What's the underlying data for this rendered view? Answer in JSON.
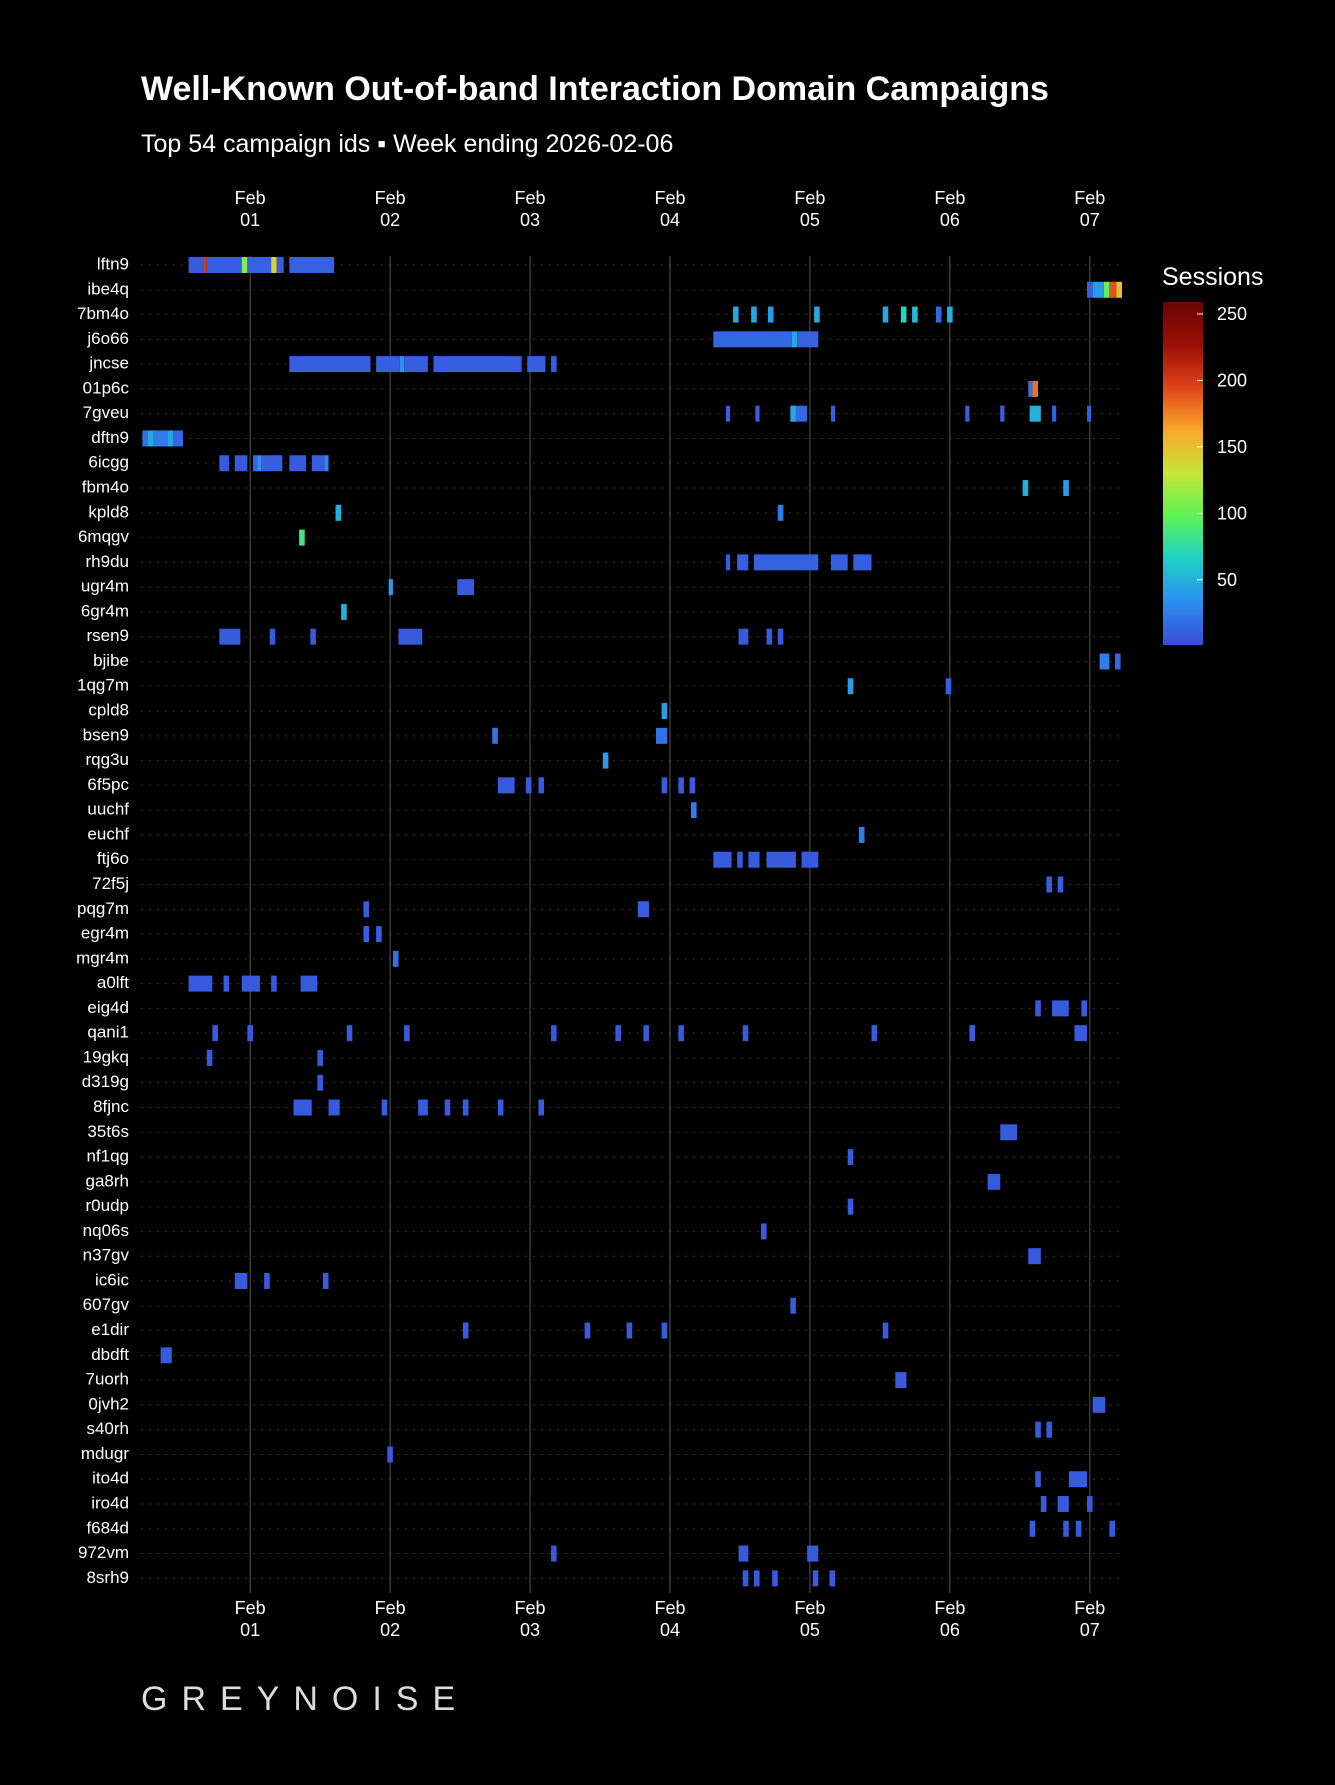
{
  "chart_data": {
    "type": "heatmap",
    "title": "Well-Known Out-of-band Interaction Domain Campaigns",
    "subtitle": "Top 54 campaign ids ▪ Week ending 2026-02-06",
    "logo": "GREYNOISE",
    "xlim": [
      0.22,
      7.23
    ],
    "xticks": [
      {
        "value": 1,
        "label": "Feb\n01"
      },
      {
        "value": 2,
        "label": "Feb\n02"
      },
      {
        "value": 3,
        "label": "Feb\n03"
      },
      {
        "value": 4,
        "label": "Feb\n04"
      },
      {
        "value": 5,
        "label": "Feb\n05"
      },
      {
        "value": 6,
        "label": "Feb\n06"
      },
      {
        "value": 7,
        "label": "Feb\n07"
      }
    ],
    "grid": true,
    "colorbar_title": "Sessions",
    "clim": [
      1,
      259
    ],
    "cticks": [
      50,
      100,
      150,
      200,
      250
    ],
    "colorscale": [
      "#3b4bd8",
      "#2b8ef0",
      "#1fd0c8",
      "#5cf356",
      "#c4e63a",
      "#f9a92a",
      "#e0441a",
      "#9a0f05",
      "#6a0303"
    ],
    "series": [
      {
        "name": "lftn9",
        "cells": [
          [
            0.56,
            0.67,
            8
          ],
          [
            0.67,
            0.69,
            200
          ],
          [
            0.69,
            0.94,
            10
          ],
          [
            0.94,
            0.98,
            110
          ],
          [
            0.98,
            1.15,
            12
          ],
          [
            1.15,
            1.19,
            140
          ],
          [
            1.19,
            1.24,
            10
          ],
          [
            1.28,
            1.6,
            12
          ]
        ]
      },
      {
        "name": "ibe4q",
        "cells": [
          [
            6.98,
            7.02,
            10
          ],
          [
            7.02,
            7.1,
            40
          ],
          [
            7.1,
            7.14,
            100
          ],
          [
            7.14,
            7.19,
            190
          ],
          [
            7.19,
            7.23,
            150
          ]
        ]
      },
      {
        "name": "7bm4o",
        "cells": [
          [
            4.45,
            4.49,
            45
          ],
          [
            4.58,
            4.62,
            45
          ],
          [
            4.7,
            4.74,
            40
          ],
          [
            5.03,
            5.07,
            45
          ],
          [
            5.52,
            5.56,
            45
          ],
          [
            5.65,
            5.69,
            70
          ],
          [
            5.73,
            5.77,
            55
          ],
          [
            5.9,
            5.94,
            15
          ],
          [
            5.98,
            6.02,
            50
          ]
        ]
      },
      {
        "name": "j6o66",
        "cells": [
          [
            4.31,
            4.87,
            15
          ],
          [
            4.87,
            4.91,
            45
          ],
          [
            4.91,
            5.06,
            12
          ]
        ]
      },
      {
        "name": "jncse",
        "cells": [
          [
            1.28,
            1.86,
            10
          ],
          [
            1.9,
            2.07,
            10
          ],
          [
            2.07,
            2.1,
            35
          ],
          [
            2.1,
            2.27,
            10
          ],
          [
            2.31,
            2.94,
            10
          ],
          [
            2.98,
            3.11,
            10
          ],
          [
            3.15,
            3.19,
            10
          ]
        ]
      },
      {
        "name": "01p6c",
        "cells": [
          [
            6.56,
            6.59,
            20
          ],
          [
            6.59,
            6.63,
            180
          ]
        ]
      },
      {
        "name": "7gveu",
        "cells": [
          [
            4.4,
            4.43,
            10
          ],
          [
            4.61,
            4.64,
            10
          ],
          [
            4.86,
            4.9,
            45
          ],
          [
            4.9,
            4.98,
            15
          ],
          [
            5.15,
            5.18,
            10
          ],
          [
            6.11,
            6.14,
            10
          ],
          [
            6.36,
            6.39,
            10
          ],
          [
            6.57,
            6.65,
            50
          ],
          [
            6.73,
            6.76,
            10
          ],
          [
            6.98,
            7.01,
            10
          ]
        ]
      },
      {
        "name": "dftn9",
        "cells": [
          [
            0.23,
            0.27,
            20
          ],
          [
            0.27,
            0.31,
            45
          ],
          [
            0.31,
            0.41,
            25
          ],
          [
            0.41,
            0.45,
            45
          ],
          [
            0.45,
            0.52,
            15
          ]
        ]
      },
      {
        "name": "6icgg",
        "cells": [
          [
            0.78,
            0.85,
            8
          ],
          [
            0.89,
            0.98,
            8
          ],
          [
            1.02,
            1.05,
            15
          ],
          [
            1.05,
            1.08,
            35
          ],
          [
            1.08,
            1.23,
            10
          ],
          [
            1.28,
            1.4,
            8
          ],
          [
            1.44,
            1.53,
            10
          ],
          [
            1.53,
            1.56,
            30
          ]
        ]
      },
      {
        "name": "fbm4o",
        "cells": [
          [
            6.52,
            6.56,
            50
          ],
          [
            6.81,
            6.85,
            40
          ]
        ]
      },
      {
        "name": "kpld8",
        "cells": [
          [
            1.61,
            1.65,
            50
          ],
          [
            4.77,
            4.81,
            25
          ]
        ]
      },
      {
        "name": "6mqgv",
        "cells": [
          [
            1.35,
            1.39,
            85
          ]
        ]
      },
      {
        "name": "rh9du",
        "cells": [
          [
            4.4,
            4.43,
            8
          ],
          [
            4.48,
            4.56,
            10
          ],
          [
            4.6,
            5.06,
            12
          ],
          [
            5.15,
            5.27,
            10
          ],
          [
            5.31,
            5.44,
            10
          ]
        ]
      },
      {
        "name": "ugr4m",
        "cells": [
          [
            1.99,
            2.02,
            40
          ],
          [
            2.48,
            2.6,
            8
          ]
        ]
      },
      {
        "name": "6gr4m",
        "cells": [
          [
            1.65,
            1.69,
            50
          ]
        ]
      },
      {
        "name": "rsen9",
        "cells": [
          [
            0.78,
            0.93,
            8
          ],
          [
            1.14,
            1.18,
            8
          ],
          [
            1.43,
            1.47,
            8
          ],
          [
            2.06,
            2.23,
            8
          ],
          [
            4.49,
            4.56,
            8
          ],
          [
            4.69,
            4.73,
            8
          ],
          [
            4.77,
            4.81,
            8
          ]
        ]
      },
      {
        "name": "bjibe",
        "cells": [
          [
            7.07,
            7.14,
            25
          ],
          [
            7.18,
            7.22,
            15
          ]
        ]
      },
      {
        "name": "1qg7m",
        "cells": [
          [
            5.27,
            5.31,
            40
          ],
          [
            5.97,
            6.01,
            10
          ]
        ]
      },
      {
        "name": "cpld8",
        "cells": [
          [
            3.94,
            3.98,
            40
          ]
        ]
      },
      {
        "name": "bsen9",
        "cells": [
          [
            2.73,
            2.77,
            20
          ],
          [
            3.9,
            3.98,
            20
          ]
        ]
      },
      {
        "name": "rqg3u",
        "cells": [
          [
            3.52,
            3.56,
            40
          ]
        ]
      },
      {
        "name": "6f5pc",
        "cells": [
          [
            2.77,
            2.89,
            8
          ],
          [
            2.97,
            3.01,
            8
          ],
          [
            3.06,
            3.1,
            8
          ],
          [
            3.94,
            3.98,
            8
          ],
          [
            4.06,
            4.1,
            8
          ],
          [
            4.14,
            4.18,
            8
          ]
        ]
      },
      {
        "name": "uuchf",
        "cells": [
          [
            4.15,
            4.19,
            25
          ]
        ]
      },
      {
        "name": "euchf",
        "cells": [
          [
            5.35,
            5.39,
            25
          ]
        ]
      },
      {
        "name": "ftj6o",
        "cells": [
          [
            4.31,
            4.44,
            8
          ],
          [
            4.48,
            4.52,
            8
          ],
          [
            4.56,
            4.64,
            8
          ],
          [
            4.69,
            4.9,
            8
          ],
          [
            4.94,
            5.06,
            8
          ]
        ]
      },
      {
        "name": "72f5j",
        "cells": [
          [
            6.69,
            6.73,
            10
          ],
          [
            6.77,
            6.81,
            10
          ]
        ]
      },
      {
        "name": "pqg7m",
        "cells": [
          [
            1.81,
            1.85,
            10
          ],
          [
            3.77,
            3.85,
            10
          ]
        ]
      },
      {
        "name": "egr4m",
        "cells": [
          [
            1.81,
            1.85,
            10
          ],
          [
            1.9,
            1.94,
            10
          ]
        ]
      },
      {
        "name": "mgr4m",
        "cells": [
          [
            2.02,
            2.06,
            20
          ]
        ]
      },
      {
        "name": "a0lft",
        "cells": [
          [
            0.56,
            0.73,
            8
          ],
          [
            0.81,
            0.85,
            8
          ],
          [
            0.94,
            1.07,
            8
          ],
          [
            1.15,
            1.19,
            8
          ],
          [
            1.36,
            1.48,
            8
          ]
        ]
      },
      {
        "name": "eig4d",
        "cells": [
          [
            6.61,
            6.65,
            8
          ],
          [
            6.73,
            6.85,
            8
          ],
          [
            6.94,
            6.98,
            8
          ]
        ]
      },
      {
        "name": "qani1",
        "cells": [
          [
            0.73,
            0.77,
            8
          ],
          [
            0.98,
            1.02,
            8
          ],
          [
            1.69,
            1.73,
            8
          ],
          [
            2.1,
            2.14,
            8
          ],
          [
            3.15,
            3.19,
            8
          ],
          [
            3.61,
            3.65,
            8
          ],
          [
            3.81,
            3.85,
            8
          ],
          [
            4.06,
            4.1,
            8
          ],
          [
            4.52,
            4.56,
            8
          ],
          [
            5.44,
            5.48,
            8
          ],
          [
            6.14,
            6.18,
            8
          ],
          [
            6.89,
            6.98,
            8
          ]
        ]
      },
      {
        "name": "19gkq",
        "cells": [
          [
            0.69,
            0.73,
            8
          ],
          [
            1.48,
            1.52,
            8
          ]
        ]
      },
      {
        "name": "d319g",
        "cells": [
          [
            1.48,
            1.52,
            8
          ]
        ]
      },
      {
        "name": "8fjnc",
        "cells": [
          [
            1.31,
            1.44,
            8
          ],
          [
            1.56,
            1.64,
            8
          ],
          [
            1.94,
            1.98,
            8
          ],
          [
            2.2,
            2.27,
            8
          ],
          [
            2.39,
            2.43,
            8
          ],
          [
            2.52,
            2.56,
            8
          ],
          [
            2.77,
            2.81,
            8
          ],
          [
            3.06,
            3.1,
            8
          ]
        ]
      },
      {
        "name": "35t6s",
        "cells": [
          [
            6.36,
            6.48,
            8
          ]
        ]
      },
      {
        "name": "nf1qg",
        "cells": [
          [
            5.27,
            5.31,
            8
          ]
        ]
      },
      {
        "name": "ga8rh",
        "cells": [
          [
            6.27,
            6.36,
            8
          ]
        ]
      },
      {
        "name": "r0udp",
        "cells": [
          [
            5.27,
            5.31,
            8
          ]
        ]
      },
      {
        "name": "nq06s",
        "cells": [
          [
            4.65,
            4.69,
            8
          ]
        ]
      },
      {
        "name": "n37gv",
        "cells": [
          [
            6.56,
            6.65,
            8
          ]
        ]
      },
      {
        "name": "ic6ic",
        "cells": [
          [
            0.89,
            0.98,
            8
          ],
          [
            1.1,
            1.14,
            8
          ],
          [
            1.52,
            1.56,
            8
          ]
        ]
      },
      {
        "name": "607gv",
        "cells": [
          [
            4.86,
            4.9,
            8
          ]
        ]
      },
      {
        "name": "e1dir",
        "cells": [
          [
            2.52,
            2.56,
            8
          ],
          [
            3.39,
            3.43,
            8
          ],
          [
            3.69,
            3.73,
            8
          ],
          [
            3.94,
            3.98,
            8
          ],
          [
            5.52,
            5.56,
            8
          ]
        ]
      },
      {
        "name": "dbdft",
        "cells": [
          [
            0.36,
            0.44,
            8
          ]
        ]
      },
      {
        "name": "7uorh",
        "cells": [
          [
            5.61,
            5.69,
            8
          ]
        ]
      },
      {
        "name": "0jvh2",
        "cells": [
          [
            7.02,
            7.11,
            8
          ]
        ]
      },
      {
        "name": "s40rh",
        "cells": [
          [
            6.61,
            6.65,
            8
          ],
          [
            6.69,
            6.73,
            8
          ]
        ]
      },
      {
        "name": "mdugr",
        "cells": [
          [
            1.98,
            2.02,
            8
          ]
        ]
      },
      {
        "name": "ito4d",
        "cells": [
          [
            6.61,
            6.65,
            8
          ],
          [
            6.85,
            6.98,
            8
          ]
        ]
      },
      {
        "name": "iro4d",
        "cells": [
          [
            6.65,
            6.69,
            8
          ],
          [
            6.77,
            6.85,
            8
          ],
          [
            6.98,
            7.02,
            8
          ]
        ]
      },
      {
        "name": "f684d",
        "cells": [
          [
            6.57,
            6.61,
            8
          ],
          [
            6.81,
            6.85,
            8
          ],
          [
            6.9,
            6.94,
            8
          ],
          [
            7.14,
            7.18,
            8
          ]
        ]
      },
      {
        "name": "972vm",
        "cells": [
          [
            3.15,
            3.19,
            8
          ],
          [
            4.49,
            4.56,
            8
          ],
          [
            4.98,
            5.06,
            8
          ]
        ]
      },
      {
        "name": "8srh9",
        "cells": [
          [
            4.52,
            4.56,
            8
          ],
          [
            4.6,
            4.64,
            8
          ],
          [
            4.73,
            4.77,
            8
          ],
          [
            5.02,
            5.06,
            8
          ],
          [
            5.14,
            5.18,
            8
          ]
        ]
      }
    ]
  }
}
